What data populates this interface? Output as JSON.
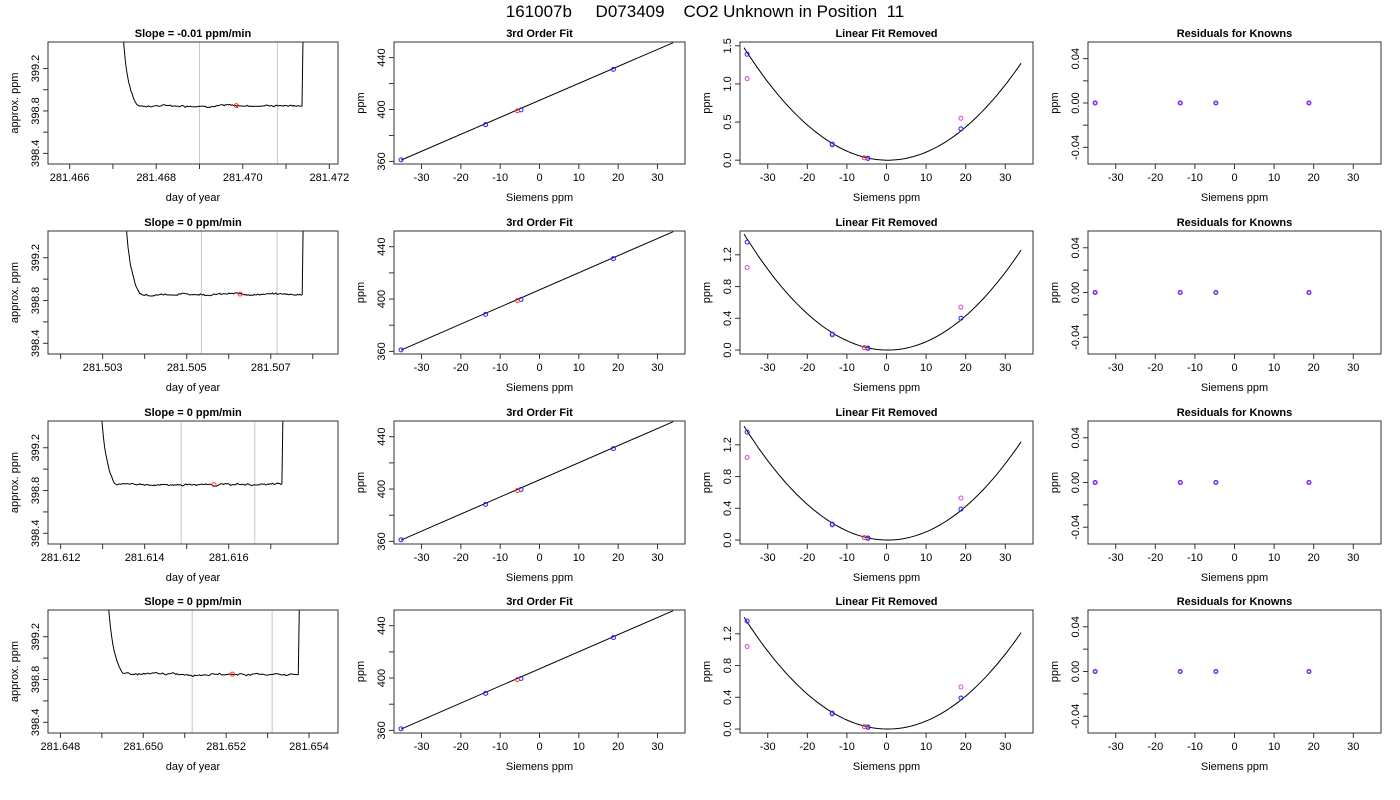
{
  "figure": {
    "title": "161007b     D073409    CO2 Unknown in Position  11"
  },
  "chart_data": [
    {
      "type": "line",
      "row": 1,
      "panel": "trace",
      "title": "Slope =  -0.01  ppm/min",
      "xlabel": "day of year",
      "ylabel": "approx. ppm",
      "xlim": [
        281.4655,
        281.4722
      ],
      "ylim": [
        398.3,
        399.45
      ],
      "xticks": [
        281.466,
        281.468,
        281.47,
        281.472
      ],
      "xtick_labels": [
        "281.466",
        "281.468",
        "281.470",
        "281.472"
      ],
      "xminor": [
        281.467,
        281.469,
        281.471
      ],
      "yticks": [
        398.4,
        398.8,
        399.2
      ],
      "ytick_labels": [
        "398.4",
        "398.8",
        "399.2"
      ],
      "yminor": [
        398.6,
        399.0
      ],
      "trace_start": 281.46715,
      "trace_end": 281.47145,
      "plateau": 398.85,
      "window": [
        281.469,
        281.4708
      ],
      "marker": {
        "x": 281.46985,
        "y": 398.85
      }
    },
    {
      "type": "scatter",
      "row": 1,
      "panel": "fit",
      "title": "3rd Order Fit",
      "xlabel": "Siemens ppm",
      "ylabel": "ppm",
      "xlim": [
        -37,
        37
      ],
      "ylim": [
        358,
        452
      ],
      "xticks": [
        -30,
        -20,
        -10,
        0,
        10,
        20,
        30
      ],
      "xtick_labels": [
        "-30",
        "-20",
        "-10",
        "0",
        "10",
        "20",
        "30"
      ],
      "yticks": [
        360,
        400,
        440
      ],
      "ytick_labels": [
        "360",
        "400",
        "440"
      ],
      "yminor": [
        380,
        420
      ],
      "x": [
        -35.2,
        -13.7,
        -4.7,
        18.8
      ],
      "y": [
        361.2,
        388.3,
        399.7,
        430.9
      ],
      "unknown": {
        "x": -5.6,
        "y": 398.9
      },
      "curve_x": [
        -35.2,
        34.0
      ],
      "curve_y": [
        361.0,
        451.5
      ]
    },
    {
      "type": "scatter",
      "row": 1,
      "panel": "linfit",
      "title": "Linear Fit Removed",
      "xlabel": "Siemens ppm",
      "ylabel": "ppm",
      "xlim": [
        -37,
        37
      ],
      "ylim": [
        -0.05,
        1.55
      ],
      "xticks": [
        -30,
        -20,
        -10,
        0,
        10,
        20,
        30
      ],
      "xtick_labels": [
        "-30",
        "-20",
        "-10",
        "0",
        "10",
        "20",
        "30"
      ],
      "yticks": [
        0,
        0.5,
        1.0,
        1.5
      ],
      "ytick_labels": [
        "0.0",
        "0.5",
        "1.0",
        "1.5"
      ],
      "x": [
        -35.2,
        -13.7,
        -4.7,
        18.8
      ],
      "y": [
        1.39,
        0.21,
        0.025,
        0.41
      ],
      "y2": [
        1.07,
        0.2,
        0.02,
        0.55
      ],
      "unknown": {
        "x": -5.6,
        "y": 0.03
      },
      "curve_a": 0.00112,
      "curve_x0": 0.3
    },
    {
      "type": "scatter",
      "row": 1,
      "panel": "resid",
      "title": "Residuals for Knowns",
      "xlabel": "Siemens ppm",
      "ylabel": "ppm",
      "xlim": [
        -37,
        37
      ],
      "ylim": [
        -0.055,
        0.055
      ],
      "xticks": [
        -30,
        -20,
        -10,
        0,
        10,
        20,
        30
      ],
      "xtick_labels": [
        "-30",
        "-20",
        "-10",
        "0",
        "10",
        "20",
        "30"
      ],
      "yticks": [
        -0.04,
        0.0,
        0.04
      ],
      "ytick_labels": [
        "-0.04",
        "0.00",
        "0.04"
      ],
      "yminor": [
        -0.02,
        0.02
      ],
      "x": [
        -35.2,
        -13.7,
        -4.7,
        18.8
      ],
      "y": [
        0,
        0,
        0,
        0
      ]
    },
    {
      "type": "line",
      "row": 2,
      "panel": "trace",
      "title": "Slope =  0  ppm/min",
      "xlabel": "day of year",
      "ylabel": "approx. ppm",
      "xlim": [
        281.5017,
        281.5086
      ],
      "ylim": [
        398.3,
        399.45
      ],
      "xticks": [
        281.503,
        281.505,
        281.507
      ],
      "xtick_labels": [
        "281.503",
        "281.505",
        "281.507"
      ],
      "xminor": [
        281.502,
        281.504,
        281.506,
        281.508
      ],
      "yticks": [
        398.4,
        398.8,
        399.2
      ],
      "ytick_labels": [
        "398.4",
        "398.8",
        "399.2"
      ],
      "yminor": [
        398.6,
        399.0
      ],
      "trace_start": 281.50347,
      "trace_end": 281.50783,
      "plateau": 398.86,
      "window": [
        281.50535,
        281.50715
      ],
      "marker": {
        "x": 281.50627,
        "y": 398.86
      }
    },
    {
      "type": "scatter",
      "row": 2,
      "panel": "fit",
      "title": "3rd Order Fit",
      "xlabel": "Siemens ppm",
      "ylabel": "ppm",
      "xlim": [
        -37,
        37
      ],
      "ylim": [
        358,
        452
      ],
      "xticks": [
        -30,
        -20,
        -10,
        0,
        10,
        20,
        30
      ],
      "xtick_labels": [
        "-30",
        "-20",
        "-10",
        "0",
        "10",
        "20",
        "30"
      ],
      "yticks": [
        360,
        400,
        440
      ],
      "ytick_labels": [
        "360",
        "400",
        "440"
      ],
      "yminor": [
        380,
        420
      ],
      "x": [
        -35.2,
        -13.7,
        -4.7,
        18.8
      ],
      "y": [
        361.2,
        388.3,
        399.7,
        430.9
      ],
      "unknown": {
        "x": -5.6,
        "y": 398.9
      },
      "curve_x": [
        -35.2,
        34.0
      ],
      "curve_y": [
        361.0,
        451.5
      ]
    },
    {
      "type": "scatter",
      "row": 2,
      "panel": "linfit",
      "title": "Linear Fit Removed",
      "xlabel": "Siemens ppm",
      "ylabel": "ppm",
      "xlim": [
        -37,
        37
      ],
      "ylim": [
        -0.05,
        1.5
      ],
      "xticks": [
        -30,
        -20,
        -10,
        0,
        10,
        20,
        30
      ],
      "xtick_labels": [
        "-30",
        "-20",
        "-10",
        "0",
        "10",
        "20",
        "30"
      ],
      "yticks": [
        0,
        0.4,
        0.8,
        1.2
      ],
      "ytick_labels": [
        "0.0",
        "0.4",
        "0.8",
        "1.2"
      ],
      "x": [
        -35.2,
        -13.7,
        -4.7,
        18.8
      ],
      "y": [
        1.36,
        0.2,
        0.025,
        0.4
      ],
      "y2": [
        1.04,
        0.19,
        0.02,
        0.54
      ],
      "unknown": {
        "x": -5.6,
        "y": 0.03
      },
      "curve_a": 0.00111,
      "curve_x0": 0.3
    },
    {
      "type": "scatter",
      "row": 2,
      "panel": "resid",
      "title": "Residuals for Knowns",
      "xlabel": "Siemens ppm",
      "ylabel": "ppm",
      "xlim": [
        -37,
        37
      ],
      "ylim": [
        -0.055,
        0.055
      ],
      "xticks": [
        -30,
        -20,
        -10,
        0,
        10,
        20,
        30
      ],
      "xtick_labels": [
        "-30",
        "-20",
        "-10",
        "0",
        "10",
        "20",
        "30"
      ],
      "yticks": [
        -0.04,
        0.0,
        0.04
      ],
      "ytick_labels": [
        "-0.04",
        "0.00",
        "0.04"
      ],
      "yminor": [
        -0.02,
        0.02
      ],
      "x": [
        -35.2,
        -13.7,
        -4.7,
        18.8
      ],
      "y": [
        0,
        0,
        0,
        0
      ]
    },
    {
      "type": "line",
      "row": 3,
      "panel": "trace",
      "title": "Slope =  0  ppm/min",
      "xlabel": "day of year",
      "ylabel": "approx. ppm",
      "xlim": [
        281.6117,
        281.6186
      ],
      "ylim": [
        398.3,
        399.45
      ],
      "xticks": [
        281.612,
        281.614,
        281.616
      ],
      "xtick_labels": [
        "281.612",
        "281.614",
        "281.616"
      ],
      "xminor": [
        281.613,
        281.615,
        281.617
      ],
      "yticks": [
        398.4,
        398.8,
        399.2
      ],
      "ytick_labels": [
        "398.4",
        "398.8",
        "399.2"
      ],
      "yminor": [
        398.6,
        399.0
      ],
      "trace_start": 281.61288,
      "trace_end": 281.61735,
      "plateau": 398.855,
      "window": [
        281.61487,
        281.61662
      ],
      "marker": {
        "x": 281.61565,
        "y": 398.855
      }
    },
    {
      "type": "scatter",
      "row": 3,
      "panel": "fit",
      "title": "3rd Order Fit",
      "xlabel": "Siemens ppm",
      "ylabel": "ppm",
      "xlim": [
        -37,
        37
      ],
      "ylim": [
        358,
        452
      ],
      "xticks": [
        -30,
        -20,
        -10,
        0,
        10,
        20,
        30
      ],
      "xtick_labels": [
        "-30",
        "-20",
        "-10",
        "0",
        "10",
        "20",
        "30"
      ],
      "yticks": [
        360,
        400,
        440
      ],
      "ytick_labels": [
        "360",
        "400",
        "440"
      ],
      "yminor": [
        380,
        420
      ],
      "x": [
        -35.2,
        -13.7,
        -4.7,
        18.8
      ],
      "y": [
        361.2,
        388.3,
        399.7,
        430.9
      ],
      "unknown": {
        "x": -5.6,
        "y": 398.9
      },
      "curve_x": [
        -35.2,
        34.0
      ],
      "curve_y": [
        361.0,
        451.5
      ]
    },
    {
      "type": "scatter",
      "row": 3,
      "panel": "linfit",
      "title": "Linear Fit Removed",
      "xlabel": "Siemens ppm",
      "ylabel": "ppm",
      "xlim": [
        -37,
        37
      ],
      "ylim": [
        -0.05,
        1.5
      ],
      "xticks": [
        -30,
        -20,
        -10,
        0,
        10,
        20,
        30
      ],
      "xtick_labels": [
        "-30",
        "-20",
        "-10",
        "0",
        "10",
        "20",
        "30"
      ],
      "yticks": [
        0,
        0.4,
        0.8,
        1.2
      ],
      "ytick_labels": [
        "0.0",
        "0.4",
        "0.8",
        "1.2"
      ],
      "x": [
        -35.2,
        -13.7,
        -4.7,
        18.8
      ],
      "y": [
        1.36,
        0.2,
        0.025,
        0.39
      ],
      "y2": [
        1.04,
        0.19,
        0.02,
        0.53
      ],
      "unknown": {
        "x": -5.6,
        "y": 0.03
      },
      "curve_a": 0.00109,
      "curve_x0": 0.3
    },
    {
      "type": "scatter",
      "row": 3,
      "panel": "resid",
      "title": "Residuals for Knowns",
      "xlabel": "Siemens ppm",
      "ylabel": "ppm",
      "xlim": [
        -37,
        37
      ],
      "ylim": [
        -0.055,
        0.055
      ],
      "xticks": [
        -30,
        -20,
        -10,
        0,
        10,
        20,
        30
      ],
      "xtick_labels": [
        "-30",
        "-20",
        "-10",
        "0",
        "10",
        "20",
        "30"
      ],
      "yticks": [
        -0.04,
        0.0,
        0.04
      ],
      "ytick_labels": [
        "-0.04",
        "0.00",
        "0.04"
      ],
      "yminor": [
        -0.02,
        0.02
      ],
      "x": [
        -35.2,
        -13.7,
        -4.7,
        18.8
      ],
      "y": [
        0,
        0,
        0,
        0
      ]
    },
    {
      "type": "line",
      "row": 4,
      "panel": "trace",
      "title": "Slope =  0  ppm/min",
      "xlabel": "day of year",
      "ylabel": "approx. ppm",
      "xlim": [
        281.6477,
        281.6547
      ],
      "ylim": [
        398.3,
        399.45
      ],
      "xticks": [
        281.648,
        281.65,
        281.652,
        281.654
      ],
      "xtick_labels": [
        "281.648",
        "281.650",
        "281.652",
        "281.654"
      ],
      "xminor": [
        281.649,
        281.651,
        281.653
      ],
      "yticks": [
        398.4,
        398.8,
        399.2
      ],
      "ytick_labels": [
        "398.4",
        "398.8",
        "399.2"
      ],
      "yminor": [
        398.6,
        399.0
      ],
      "trace_start": 281.64906,
      "trace_end": 281.65383,
      "plateau": 398.85,
      "window": [
        281.65118,
        281.65311
      ],
      "marker": {
        "x": 281.65215,
        "y": 398.85
      }
    },
    {
      "type": "scatter",
      "row": 4,
      "panel": "fit",
      "title": "3rd Order Fit",
      "xlabel": "Siemens ppm",
      "ylabel": "ppm",
      "xlim": [
        -37,
        37
      ],
      "ylim": [
        358,
        452
      ],
      "xticks": [
        -30,
        -20,
        -10,
        0,
        10,
        20,
        30
      ],
      "xtick_labels": [
        "-30",
        "-20",
        "-10",
        "0",
        "10",
        "20",
        "30"
      ],
      "yticks": [
        360,
        400,
        440
      ],
      "ytick_labels": [
        "360",
        "400",
        "440"
      ],
      "yminor": [
        380,
        420
      ],
      "x": [
        -35.2,
        -13.7,
        -4.7,
        18.8
      ],
      "y": [
        361.2,
        388.3,
        399.7,
        430.9
      ],
      "unknown": {
        "x": -5.6,
        "y": 398.9
      },
      "curve_x": [
        -35.2,
        34.0
      ],
      "curve_y": [
        361.0,
        451.5
      ]
    },
    {
      "type": "scatter",
      "row": 4,
      "panel": "linfit",
      "title": "Linear Fit Removed",
      "xlabel": "Siemens ppm",
      "ylabel": "ppm",
      "xlim": [
        -37,
        37
      ],
      "ylim": [
        -0.05,
        1.5
      ],
      "xticks": [
        -30,
        -20,
        -10,
        0,
        10,
        20,
        30
      ],
      "xtick_labels": [
        "-30",
        "-20",
        "-10",
        "0",
        "10",
        "20",
        "30"
      ],
      "yticks": [
        0,
        0.4,
        0.8,
        1.2
      ],
      "ytick_labels": [
        "0.0",
        "0.4",
        "0.8",
        "1.2"
      ],
      "x": [
        -35.2,
        -13.7,
        -4.7,
        18.8
      ],
      "y": [
        1.36,
        0.2,
        0.025,
        0.39
      ],
      "y2": [
        1.04,
        0.19,
        0.02,
        0.53
      ],
      "unknown": {
        "x": -5.6,
        "y": 0.03
      },
      "curve_a": 0.00107,
      "curve_x0": 0.3
    },
    {
      "type": "scatter",
      "row": 4,
      "panel": "resid",
      "title": "Residuals for Knowns",
      "xlabel": "Siemens ppm",
      "ylabel": "ppm",
      "xlim": [
        -37,
        37
      ],
      "ylim": [
        -0.055,
        0.055
      ],
      "xticks": [
        -30,
        -20,
        -10,
        0,
        10,
        20,
        30
      ],
      "xtick_labels": [
        "-30",
        "-20",
        "-10",
        "0",
        "10",
        "20",
        "30"
      ],
      "yticks": [
        -0.04,
        0.0,
        0.04
      ],
      "ytick_labels": [
        "-0.04",
        "0.00",
        "0.04"
      ],
      "yminor": [
        -0.02,
        0.02
      ],
      "x": [
        -35.2,
        -13.7,
        -4.7,
        18.8
      ],
      "y": [
        0,
        0,
        0,
        0
      ]
    }
  ]
}
